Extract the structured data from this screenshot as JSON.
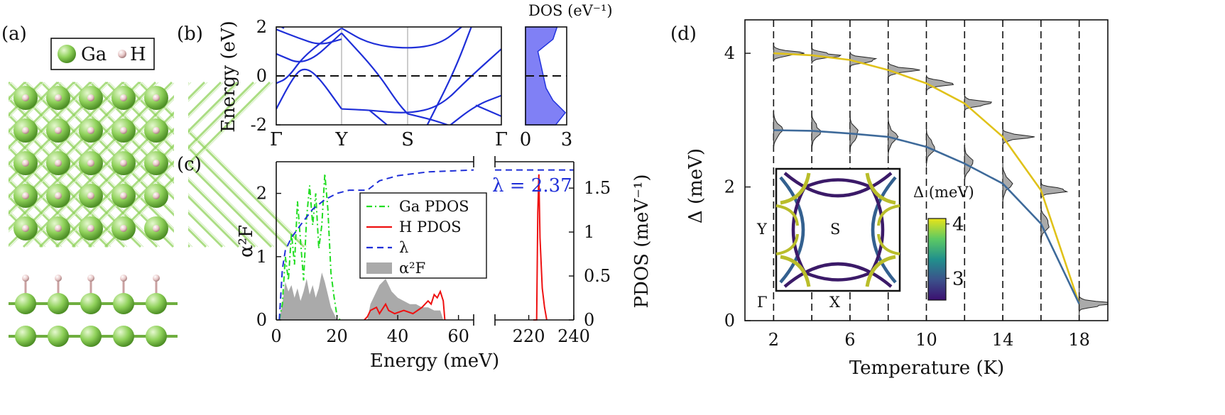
{
  "panels": {
    "a": {
      "label": "(a)",
      "legend": [
        "Ga",
        "H"
      ],
      "colors": {
        "ga": "#8fd15a",
        "h": "#e8c8c8"
      }
    },
    "b": {
      "label": "(b)",
      "ylabel": "Energy (eV)",
      "dos_title": "DOS (eV⁻¹)"
    },
    "c": {
      "label": "(c)",
      "ylabel_left": "α²F",
      "ylabel_right": "PDOS (meV⁻¹)",
      "xlabel": "Energy (meV)",
      "lambda_text": "λ = 2.37",
      "legend": [
        "Ga PDOS",
        "H PDOS",
        "λ",
        "α²F"
      ]
    },
    "d": {
      "label": "(d)",
      "xlabel": "Temperature (K)",
      "ylabel": "Δ (meV)",
      "colorbar_label": "Δ (meV)",
      "inset_labels": [
        "Y",
        "S",
        "Γ",
        "X"
      ]
    }
  },
  "chart_data": [
    {
      "type": "line",
      "panel": "b-bands",
      "ylabel": "Energy (eV)",
      "ylim": [
        -2,
        2
      ],
      "yticks": [
        "2",
        "0",
        "-2"
      ],
      "kpath": [
        "Γ",
        "Y",
        "S",
        "Γ"
      ],
      "fermi_level": 0,
      "color": "#1f2fd8"
    },
    {
      "type": "area",
      "panel": "b-dos",
      "title": "DOS (eV⁻¹)",
      "xlim": [
        0,
        3
      ],
      "xticks": [
        "0",
        "3"
      ],
      "ylim": [
        -2,
        2
      ],
      "color": "#8080f5",
      "profile": {
        "E": [
          2,
          1.5,
          1.0,
          0.5,
          0,
          -0.5,
          -1.0,
          -1.5,
          -2
        ],
        "dos": [
          2.3,
          2.0,
          0.9,
          1.1,
          1.3,
          1.5,
          2.0,
          2.9,
          2.2
        ]
      }
    },
    {
      "type": "line",
      "panel": "c",
      "xlabel": "Energy (meV)",
      "ylabel": "α²F",
      "ylabel_right": "PDOS (meV⁻¹)",
      "xlim_left": [
        0,
        65
      ],
      "xlim_right": [
        205,
        240
      ],
      "xticks": [
        "0",
        "20",
        "40",
        "60",
        "220",
        "240"
      ],
      "ylim": [
        0,
        2.5
      ],
      "yticks": [
        "0",
        "1",
        "2"
      ],
      "yticks_right": [
        "0",
        "0.5",
        "1",
        "1.5"
      ],
      "series": [
        {
          "name": "Ga PDOS",
          "color": "#22dd22",
          "style": "dash-dot"
        },
        {
          "name": "H PDOS",
          "color": "#ee1111",
          "style": "solid"
        },
        {
          "name": "λ",
          "color": "#1f2fd8",
          "style": "dashed",
          "final_value": 2.37
        },
        {
          "name": "α²F",
          "color": "#aaaaaa",
          "style": "filled"
        }
      ]
    },
    {
      "type": "line",
      "panel": "d",
      "xlabel": "Temperature (K)",
      "ylabel": "Δ (meV)",
      "xlim": [
        0.5,
        19.5
      ],
      "ylim": [
        0,
        4.5
      ],
      "xticks": [
        "2",
        "6",
        "10",
        "14",
        "18"
      ],
      "yticks": [
        "0",
        "2",
        "4"
      ],
      "series": [
        {
          "name": "",
          "color": "#e0c21a",
          "x": [
            2,
            4,
            6,
            8,
            10,
            12,
            14,
            16,
            18
          ],
          "y": [
            4.0,
            3.97,
            3.9,
            3.75,
            3.55,
            3.25,
            2.75,
            1.95,
            0.25
          ]
        },
        {
          "name": "",
          "color": "#3e6a9a",
          "x": [
            2,
            4,
            6,
            8,
            10,
            12,
            14,
            16,
            18
          ],
          "y": [
            2.85,
            2.84,
            2.8,
            2.75,
            2.6,
            2.35,
            2.05,
            1.45,
            0.25
          ]
        }
      ],
      "vlines": [
        2,
        4,
        6,
        8,
        10,
        12,
        14,
        16,
        18
      ],
      "colorbar": {
        "ticks": [
          "4",
          "3"
        ],
        "range": [
          2.6,
          4.1
        ]
      }
    }
  ]
}
